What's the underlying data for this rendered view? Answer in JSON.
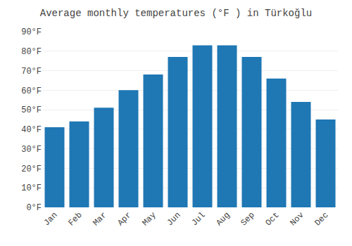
{
  "chart_data": {
    "type": "bar",
    "title": "Average monthly temperatures (°F ) in Türkoğlu",
    "categories": [
      "Jan",
      "Feb",
      "Mar",
      "Apr",
      "May",
      "Jun",
      "Jul",
      "Aug",
      "Sep",
      "Oct",
      "Nov",
      "Dec"
    ],
    "values": [
      41,
      44,
      51,
      60,
      68,
      77,
      83,
      83,
      77,
      66,
      54,
      45
    ],
    "ylim": [
      0,
      90
    ],
    "yticks": [
      {
        "value": 0,
        "label": "0°F"
      },
      {
        "value": 10,
        "label": "10°F"
      },
      {
        "value": 20,
        "label": "20°F"
      },
      {
        "value": 30,
        "label": "30°F"
      },
      {
        "value": 40,
        "label": "40°F"
      },
      {
        "value": 50,
        "label": "50°F"
      },
      {
        "value": 60,
        "label": "60°F"
      },
      {
        "value": 70,
        "label": "70°F"
      },
      {
        "value": 80,
        "label": "80°F"
      },
      {
        "value": 90,
        "label": "90°F"
      }
    ],
    "grid": true
  }
}
